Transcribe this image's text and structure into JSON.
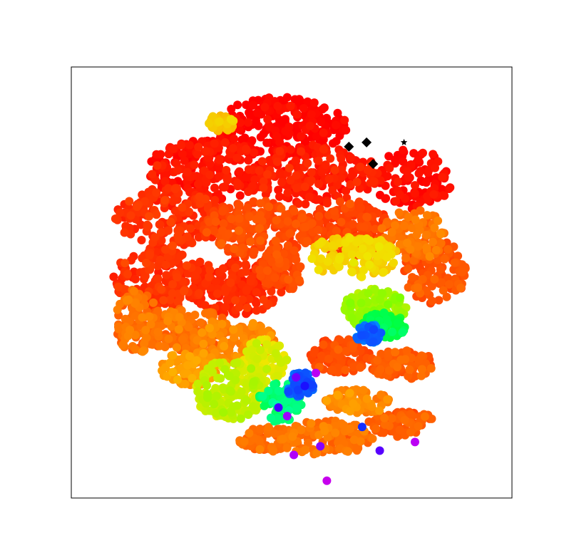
{
  "chart_data": {
    "type": "scatter",
    "title": "",
    "xlabel": "",
    "ylabel": "",
    "xlim": [
      -1.0,
      1.0
    ],
    "ylim": [
      -1.0,
      1.0
    ],
    "grid": false,
    "axis_ticks": false,
    "colormap": "gist_rainbow",
    "color_range": [
      0,
      1
    ],
    "regions": [
      {
        "name": "",
        "cx": -0.05,
        "cy": 0.72,
        "rx": 0.3,
        "ry": 0.14,
        "value": 0.0,
        "n": 260
      },
      {
        "name": "",
        "cx": -0.38,
        "cy": 0.52,
        "rx": 0.28,
        "ry": 0.14,
        "value": 0.02,
        "n": 240
      },
      {
        "name": "",
        "cx": 0.1,
        "cy": 0.5,
        "rx": 0.3,
        "ry": 0.14,
        "value": 0.03,
        "n": 200
      },
      {
        "name": "",
        "cx": 0.55,
        "cy": 0.48,
        "rx": 0.18,
        "ry": 0.14,
        "value": 0.01,
        "n": 120
      },
      {
        "name": "",
        "cx": -0.55,
        "cy": 0.3,
        "rx": 0.25,
        "ry": 0.14,
        "value": 0.05,
        "n": 200
      },
      {
        "name": "",
        "cx": -0.15,
        "cy": 0.25,
        "rx": 0.25,
        "ry": 0.14,
        "value": 0.08,
        "n": 220
      },
      {
        "name": "",
        "cx": 0.25,
        "cy": 0.25,
        "rx": 0.2,
        "ry": 0.13,
        "value": 0.07,
        "n": 180
      },
      {
        "name": "",
        "cx": 0.55,
        "cy": 0.22,
        "rx": 0.15,
        "ry": 0.12,
        "value": 0.12,
        "n": 120
      },
      {
        "name": "",
        "cx": 0.65,
        "cy": 0.05,
        "rx": 0.14,
        "ry": 0.15,
        "value": 0.09,
        "n": 110
      },
      {
        "name": "",
        "cx": -0.6,
        "cy": 0.02,
        "rx": 0.22,
        "ry": 0.14,
        "value": 0.05,
        "n": 200
      },
      {
        "name": "",
        "cx": -0.25,
        "cy": -0.02,
        "rx": 0.22,
        "ry": 0.13,
        "value": 0.04,
        "n": 180
      },
      {
        "name": "",
        "cx": -0.05,
        "cy": 0.05,
        "rx": 0.1,
        "ry": 0.1,
        "value": 0.08,
        "n": 80
      },
      {
        "name": "",
        "cx": -0.7,
        "cy": -0.18,
        "rx": 0.1,
        "ry": 0.15,
        "value": 0.12,
        "n": 100
      },
      {
        "name": "",
        "cx": -0.48,
        "cy": -0.22,
        "rx": 0.2,
        "ry": 0.1,
        "value": 0.12,
        "n": 160
      },
      {
        "name": "",
        "cx": -0.25,
        "cy": -0.28,
        "rx": 0.18,
        "ry": 0.1,
        "value": 0.14,
        "n": 120
      },
      {
        "name": "",
        "cx": -0.45,
        "cy": -0.4,
        "rx": 0.15,
        "ry": 0.08,
        "value": 0.16,
        "n": 100
      },
      {
        "name": "",
        "cx": -0.28,
        "cy": -0.5,
        "rx": 0.16,
        "ry": 0.14,
        "value": 0.27,
        "n": 180
      },
      {
        "name": "",
        "cx": -0.12,
        "cy": -0.36,
        "rx": 0.1,
        "ry": 0.1,
        "value": 0.25,
        "n": 90
      },
      {
        "name": "",
        "cx": -0.05,
        "cy": -0.55,
        "rx": 0.1,
        "ry": 0.1,
        "value": 0.48,
        "n": 80
      },
      {
        "name": "",
        "cx": 0.04,
        "cy": -0.48,
        "rx": 0.06,
        "ry": 0.07,
        "value": 0.67,
        "n": 60
      },
      {
        "name": "",
        "cx": 0.28,
        "cy": 0.12,
        "rx": 0.2,
        "ry": 0.1,
        "value": 0.22,
        "n": 150
      },
      {
        "name": "",
        "cx": 0.38,
        "cy": -0.12,
        "rx": 0.14,
        "ry": 0.1,
        "value": 0.3,
        "n": 120
      },
      {
        "name": "",
        "cx": 0.42,
        "cy": -0.2,
        "rx": 0.1,
        "ry": 0.06,
        "value": 0.45,
        "n": 70
      },
      {
        "name": "",
        "cx": 0.35,
        "cy": -0.24,
        "rx": 0.06,
        "ry": 0.05,
        "value": 0.66,
        "n": 50
      },
      {
        "name": "",
        "cx": 0.22,
        "cy": -0.34,
        "rx": 0.14,
        "ry": 0.08,
        "value": 0.08,
        "n": 100
      },
      {
        "name": "",
        "cx": 0.5,
        "cy": -0.38,
        "rx": 0.15,
        "ry": 0.07,
        "value": 0.1,
        "n": 90
      },
      {
        "name": "",
        "cx": 0.3,
        "cy": -0.55,
        "rx": 0.15,
        "ry": 0.06,
        "value": 0.14,
        "n": 100
      },
      {
        "name": "",
        "cx": 0.15,
        "cy": -0.72,
        "rx": 0.22,
        "ry": 0.08,
        "value": 0.12,
        "n": 140
      },
      {
        "name": "",
        "cx": 0.52,
        "cy": -0.66,
        "rx": 0.18,
        "ry": 0.06,
        "value": 0.1,
        "n": 90
      },
      {
        "name": "",
        "cx": -0.12,
        "cy": -0.73,
        "rx": 0.12,
        "ry": 0.06,
        "value": 0.11,
        "n": 80
      },
      {
        "name": "",
        "cx": -0.32,
        "cy": 0.74,
        "rx": 0.06,
        "ry": 0.04,
        "value": 0.2,
        "n": 40
      }
    ],
    "highlights": [
      {
        "x": 0.02,
        "y": -0.44,
        "value": 0.8
      },
      {
        "x": 0.06,
        "y": -0.48,
        "value": 0.72
      },
      {
        "x": 0.11,
        "y": -0.42,
        "value": 0.88
      },
      {
        "x": -0.06,
        "y": -0.58,
        "value": 0.76
      },
      {
        "x": -0.02,
        "y": -0.62,
        "value": 0.84
      },
      {
        "x": 0.13,
        "y": -0.76,
        "value": 0.82
      },
      {
        "x": 0.01,
        "y": -0.8,
        "value": 0.86
      },
      {
        "x": 0.4,
        "y": -0.78,
        "value": 0.78
      },
      {
        "x": 0.32,
        "y": -0.67,
        "value": 0.7
      },
      {
        "x": 0.16,
        "y": -0.92,
        "value": 0.9
      },
      {
        "x": 0.56,
        "y": -0.74,
        "value": 0.88
      }
    ],
    "markers": [
      {
        "shape": "diamond",
        "x": 0.26,
        "y": 0.63
      },
      {
        "shape": "diamond",
        "x": 0.34,
        "y": 0.65
      },
      {
        "shape": "diamond",
        "x": 0.37,
        "y": 0.55
      },
      {
        "shape": "star",
        "x": 0.51,
        "y": 0.65
      }
    ]
  }
}
